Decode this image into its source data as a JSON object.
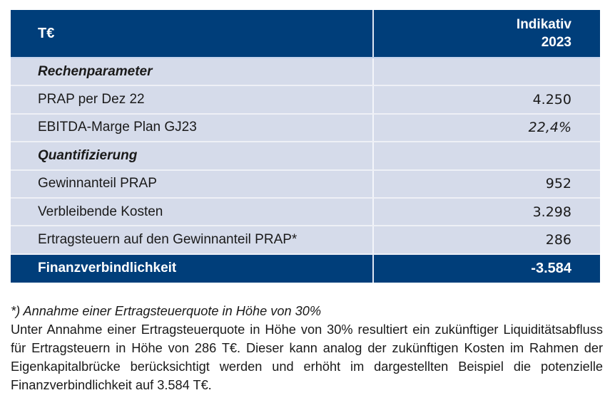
{
  "table": {
    "header": {
      "col1": "T€",
      "col2_line1": "Indikativ",
      "col2_line2": "2023"
    },
    "rows": [
      {
        "label": "Rechenparameter",
        "value": "",
        "type": "section"
      },
      {
        "label": "PRAP per Dez 22",
        "value": "4.250",
        "type": "data"
      },
      {
        "label": "EBITDA-Marge Plan GJ23",
        "value": "22,4%",
        "type": "data-italic"
      },
      {
        "label": "Quantifizierung",
        "value": "",
        "type": "section"
      },
      {
        "label": "Gewinnanteil PRAP",
        "value": "952",
        "type": "data"
      },
      {
        "label": "Verbleibende Kosten",
        "value": "3.298",
        "type": "data"
      },
      {
        "label": "Ertragsteuern auf den Gewinnanteil PRAP*",
        "value": "286",
        "type": "data"
      }
    ],
    "total": {
      "label": "Finanzverbindlichkeit",
      "value": "-3.584"
    }
  },
  "notes": {
    "footnote": "*) Annahme einer Ertragsteuerquote in Höhe von 30%",
    "paragraph": "Unter Annahme einer Ertragsteuerquote in Höhe von 30% resultiert ein zukünftiger Liquiditätsabfluss für Ertragsteuern in Höhe von 286 T€. Dieser kann analog der zukünftigen Kosten im Rahmen der Eigenkapitalbrücke berücksichtigt werden und erhöht im dargestellten Beispiel die potenzielle Finanzverbindlichkeit auf 3.584 T€."
  },
  "colors": {
    "header_bg": "#003e7a",
    "row_bg": "#d5dbea",
    "header_text": "#ffffff"
  }
}
